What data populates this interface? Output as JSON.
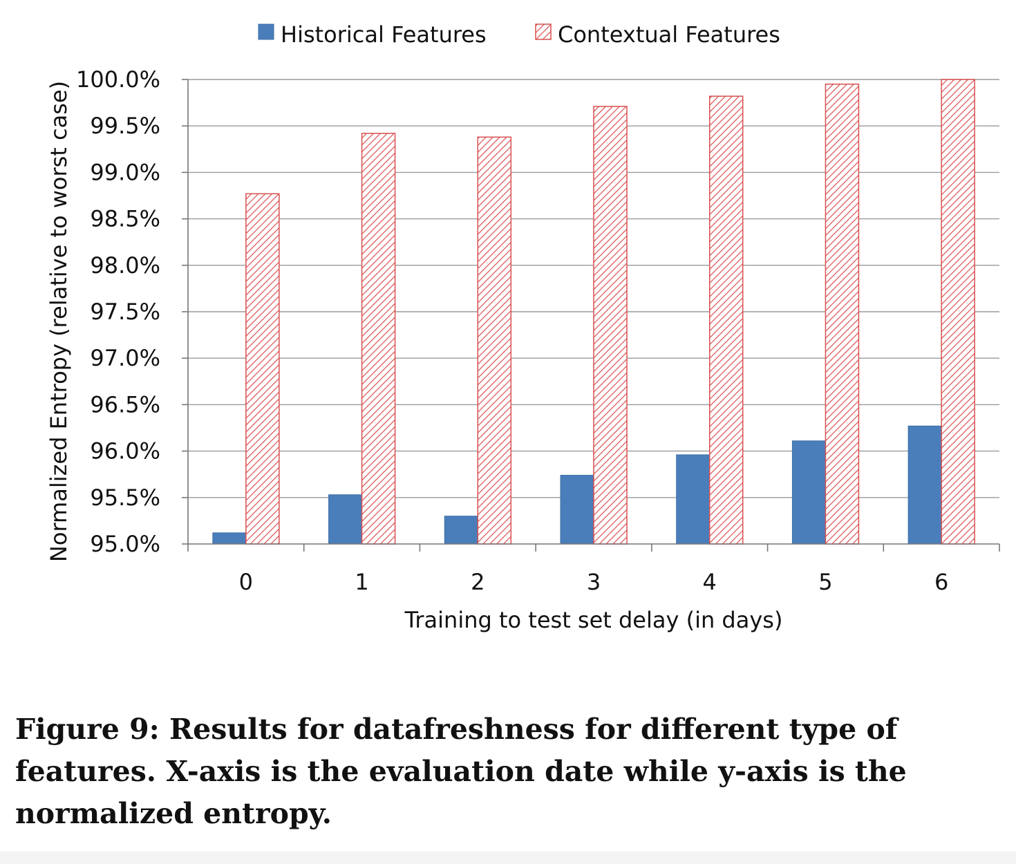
{
  "colors": {
    "historical": "#4a7ebb",
    "contextual_stroke": "#d94f4f",
    "grid": "#9a9a9a",
    "axis": "#777777"
  },
  "chart_data": {
    "type": "bar",
    "categories": [
      "0",
      "1",
      "2",
      "3",
      "4",
      "5",
      "6"
    ],
    "series": [
      {
        "name": "Historical Features",
        "values": [
          95.12,
          95.53,
          95.3,
          95.74,
          95.96,
          96.11,
          96.27
        ],
        "pattern": "solid"
      },
      {
        "name": "Contextual Features",
        "values": [
          98.77,
          99.42,
          99.38,
          99.71,
          99.82,
          99.95,
          100.0
        ],
        "pattern": "diagonal-hatch"
      }
    ],
    "xlabel": "Training to test set delay (in days)",
    "ylabel": "Normalized Entropy (relative to worst case)",
    "ylim": [
      95.0,
      100.0
    ],
    "yticks": [
      95.0,
      95.5,
      96.0,
      96.5,
      97.0,
      97.5,
      98.0,
      98.5,
      99.0,
      99.5,
      100.0
    ],
    "ytick_labels": [
      "95.0%",
      "95.5%",
      "96.0%",
      "96.5%",
      "97.0%",
      "97.5%",
      "98.0%",
      "98.5%",
      "99.0%",
      "99.5%",
      "100.0%"
    ],
    "grid": true,
    "legend_position": "top-center"
  },
  "caption": "Figure 9: Results for datafreshness for different type of features. X-axis is the evaluation date while y-axis is the normalized entropy."
}
